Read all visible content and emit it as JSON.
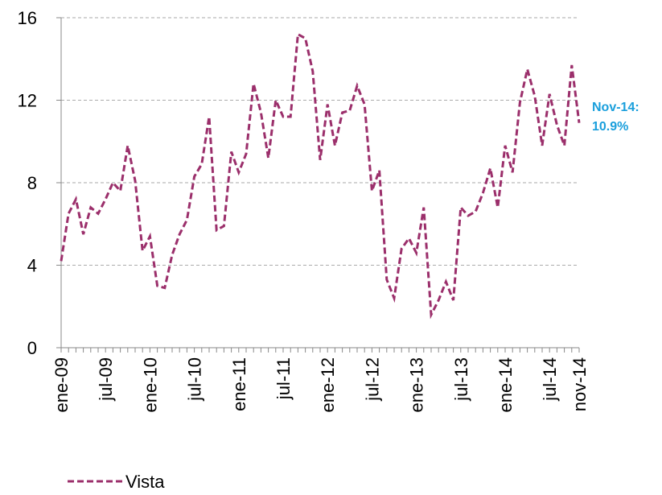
{
  "chart_data": {
    "type": "line",
    "categories": [
      "ene-09",
      null,
      null,
      null,
      null,
      null,
      "jul-09",
      null,
      null,
      null,
      null,
      null,
      "ene-10",
      null,
      null,
      null,
      null,
      null,
      "jul-10",
      null,
      null,
      null,
      null,
      null,
      "ene-11",
      null,
      null,
      null,
      null,
      null,
      "jul-11",
      null,
      null,
      null,
      null,
      null,
      "ene-12",
      null,
      null,
      null,
      null,
      null,
      "jul-12",
      null,
      null,
      null,
      null,
      null,
      "ene-13",
      null,
      null,
      null,
      null,
      null,
      "jul-13",
      null,
      null,
      null,
      null,
      null,
      "ene-14",
      null,
      null,
      null,
      null,
      null,
      "jul-14",
      null,
      null,
      null,
      "nov-14"
    ],
    "series": [
      {
        "name": "Vista",
        "color": "#9b2f6b",
        "values": [
          4.2,
          6.5,
          7.2,
          5.5,
          6.8,
          6.5,
          7.2,
          8.0,
          7.6,
          9.8,
          8.1,
          4.7,
          5.4,
          3.0,
          2.9,
          4.5,
          5.5,
          6.2,
          8.3,
          8.9,
          11.2,
          5.7,
          5.9,
          9.5,
          8.5,
          9.4,
          12.8,
          11.4,
          9.2,
          12.0,
          11.2,
          11.2,
          15.2,
          15.0,
          13.4,
          9.1,
          11.8,
          9.8,
          11.4,
          11.5,
          12.7,
          11.8,
          7.6,
          8.6,
          3.3,
          2.4,
          4.8,
          5.3,
          4.6,
          6.8,
          1.6,
          2.3,
          3.2,
          2.3,
          6.8,
          6.4,
          6.6,
          7.5,
          8.7,
          6.8,
          9.8,
          8.5,
          11.9,
          13.5,
          12.2,
          9.8,
          12.3,
          10.8,
          9.8,
          13.7,
          10.9
        ]
      }
    ],
    "ylim": [
      0,
      16
    ],
    "yticks": [
      0,
      4,
      8,
      12,
      16
    ],
    "grid": true,
    "legend": "bottom-left",
    "annotation": [
      "Nov-14:",
      "10.9%"
    ],
    "annotation_color": "#1a9fdc"
  }
}
